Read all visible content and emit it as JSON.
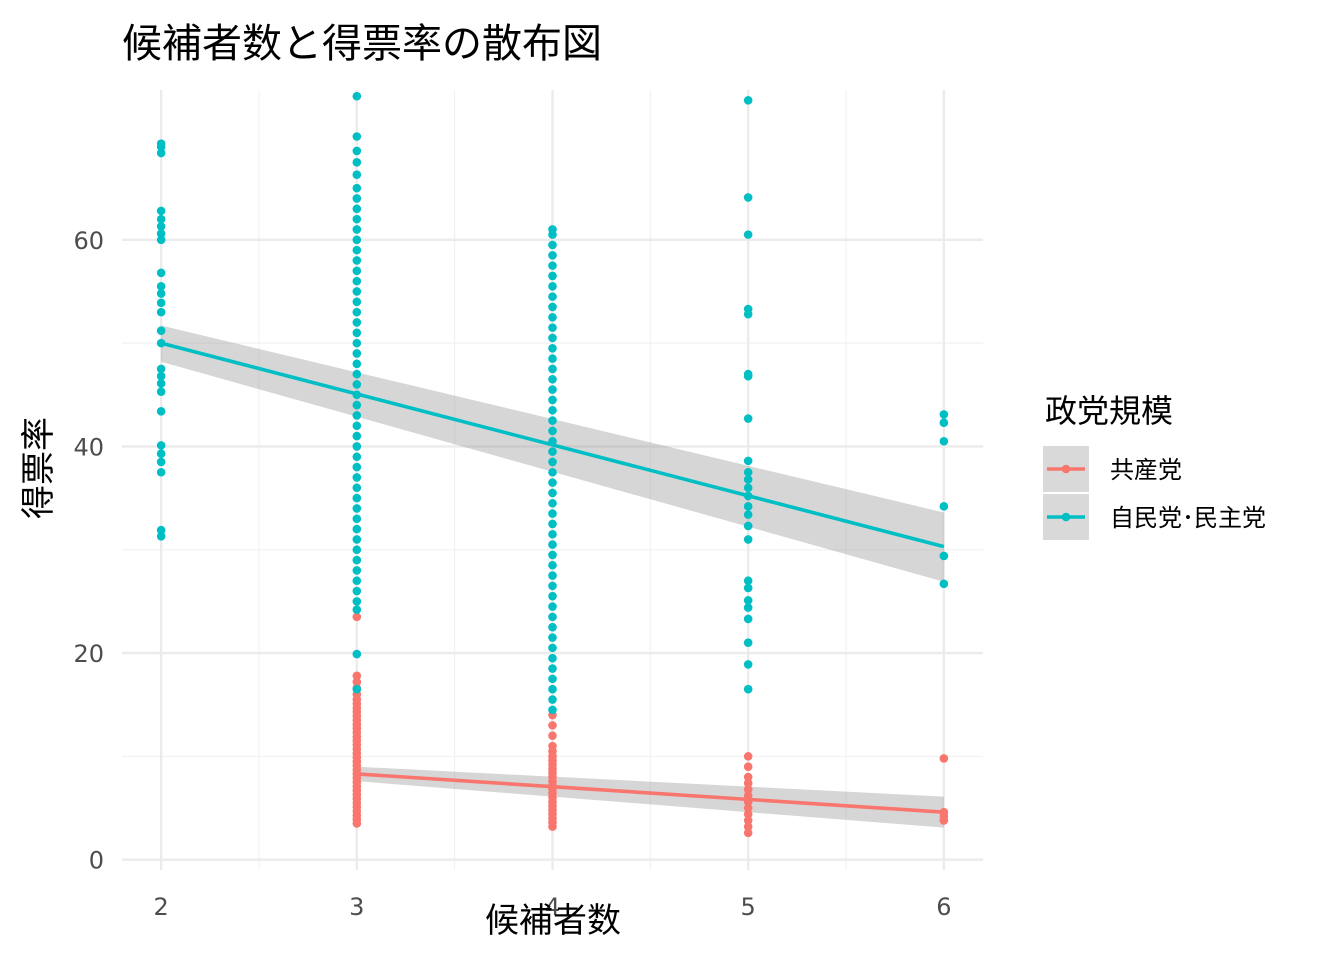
{
  "chart_data": {
    "type": "scatter",
    "title": "候補者数と得票率の散布図",
    "xlabel": "候補者数",
    "ylabel": "得票率",
    "xlim": [
      1.8,
      6.2
    ],
    "ylim": [
      -1,
      74.5
    ],
    "x_ticks": [
      2,
      3,
      4,
      5,
      6
    ],
    "y_ticks": [
      0,
      20,
      40,
      60
    ],
    "grid": true,
    "legend": {
      "title": "政党規模",
      "placement": "right",
      "entries": [
        "共産党",
        "自民党･民主党"
      ]
    },
    "series": [
      {
        "name": "共産党",
        "color": "#f8766d",
        "points": [
          [
            3,
            3.5
          ],
          [
            3,
            3.9
          ],
          [
            3,
            4.3
          ],
          [
            3,
            4.7
          ],
          [
            3,
            5.1
          ],
          [
            3,
            5.5
          ],
          [
            3,
            5.9
          ],
          [
            3,
            6.3
          ],
          [
            3,
            6.7
          ],
          [
            3,
            7.1
          ],
          [
            3,
            7.5
          ],
          [
            3,
            7.9
          ],
          [
            3,
            8.3
          ],
          [
            3,
            8.7
          ],
          [
            3,
            9.1
          ],
          [
            3,
            9.5
          ],
          [
            3,
            9.9
          ],
          [
            3,
            10.3
          ],
          [
            3,
            10.7
          ],
          [
            3,
            11.1
          ],
          [
            3,
            11.5
          ],
          [
            3,
            11.9
          ],
          [
            3,
            12.3
          ],
          [
            3,
            12.7
          ],
          [
            3,
            13.1
          ],
          [
            3,
            13.5
          ],
          [
            3,
            13.9
          ],
          [
            3,
            14.3
          ],
          [
            3,
            14.7
          ],
          [
            3,
            15.1
          ],
          [
            3,
            15.5
          ],
          [
            3,
            16.0
          ],
          [
            3,
            16.6
          ],
          [
            3,
            17.2
          ],
          [
            3,
            17.8
          ],
          [
            3,
            23.5
          ],
          [
            4,
            3.2
          ],
          [
            4,
            3.6
          ],
          [
            4,
            4.0
          ],
          [
            4,
            4.4
          ],
          [
            4,
            4.8
          ],
          [
            4,
            5.2
          ],
          [
            4,
            5.6
          ],
          [
            4,
            6.0
          ],
          [
            4,
            6.4
          ],
          [
            4,
            6.8
          ],
          [
            4,
            7.2
          ],
          [
            4,
            7.6
          ],
          [
            4,
            8.0
          ],
          [
            4,
            8.4
          ],
          [
            4,
            8.8
          ],
          [
            4,
            9.2
          ],
          [
            4,
            9.6
          ],
          [
            4,
            10.0
          ],
          [
            4,
            10.5
          ],
          [
            4,
            11.0
          ],
          [
            4,
            12.0
          ],
          [
            4,
            13.0
          ],
          [
            4,
            14.0
          ],
          [
            5,
            2.6
          ],
          [
            5,
            3.2
          ],
          [
            5,
            3.8
          ],
          [
            5,
            4.4
          ],
          [
            5,
            5.0
          ],
          [
            5,
            5.6
          ],
          [
            5,
            6.2
          ],
          [
            5,
            6.8
          ],
          [
            5,
            7.4
          ],
          [
            5,
            8.0
          ],
          [
            5,
            9.0
          ],
          [
            5,
            10.0
          ],
          [
            6,
            3.8
          ],
          [
            6,
            4.2
          ],
          [
            6,
            4.6
          ],
          [
            6,
            9.8
          ]
        ],
        "trend": {
          "x": [
            3,
            6
          ],
          "y": [
            8.3,
            4.6
          ],
          "ci_lower": [
            7.6,
            3.1
          ],
          "ci_upper": [
            9.0,
            6.1
          ]
        }
      },
      {
        "name": "自民党･民主党",
        "color": "#00bfc4",
        "points": [
          [
            2,
            31.3
          ],
          [
            2,
            31.9
          ],
          [
            2,
            37.5
          ],
          [
            2,
            38.5
          ],
          [
            2,
            39.3
          ],
          [
            2,
            40.1
          ],
          [
            2,
            43.4
          ],
          [
            2,
            45.3
          ],
          [
            2,
            46.1
          ],
          [
            2,
            46.8
          ],
          [
            2,
            47.5
          ],
          [
            2,
            50.0
          ],
          [
            2,
            51.2
          ],
          [
            2,
            53.0
          ],
          [
            2,
            53.9
          ],
          [
            2,
            54.8
          ],
          [
            2,
            55.5
          ],
          [
            2,
            56.8
          ],
          [
            2,
            60.0
          ],
          [
            2,
            60.6
          ],
          [
            2,
            61.3
          ],
          [
            2,
            62.0
          ],
          [
            2,
            62.8
          ],
          [
            2,
            68.4
          ],
          [
            2,
            69.0
          ],
          [
            2,
            69.3
          ],
          [
            3,
            16.5
          ],
          [
            3,
            19.9
          ],
          [
            3,
            24.2
          ],
          [
            3,
            25.0
          ],
          [
            3,
            26.0
          ],
          [
            3,
            27.0
          ],
          [
            3,
            28.0
          ],
          [
            3,
            29.0
          ],
          [
            3,
            30.0
          ],
          [
            3,
            31.0
          ],
          [
            3,
            32.0
          ],
          [
            3,
            33.0
          ],
          [
            3,
            34.0
          ],
          [
            3,
            35.0
          ],
          [
            3,
            36.0
          ],
          [
            3,
            37.0
          ],
          [
            3,
            38.0
          ],
          [
            3,
            39.0
          ],
          [
            3,
            40.0
          ],
          [
            3,
            41.0
          ],
          [
            3,
            42.0
          ],
          [
            3,
            43.0
          ],
          [
            3,
            44.0
          ],
          [
            3,
            45.0
          ],
          [
            3,
            46.0
          ],
          [
            3,
            47.0
          ],
          [
            3,
            48.0
          ],
          [
            3,
            49.0
          ],
          [
            3,
            50.0
          ],
          [
            3,
            51.0
          ],
          [
            3,
            52.0
          ],
          [
            3,
            53.0
          ],
          [
            3,
            54.0
          ],
          [
            3,
            55.0
          ],
          [
            3,
            56.0
          ],
          [
            3,
            57.0
          ],
          [
            3,
            58.0
          ],
          [
            3,
            59.0
          ],
          [
            3,
            60.0
          ],
          [
            3,
            61.0
          ],
          [
            3,
            62.0
          ],
          [
            3,
            63.0
          ],
          [
            3,
            64.0
          ],
          [
            3,
            65.0
          ],
          [
            3,
            66.3
          ],
          [
            3,
            67.5
          ],
          [
            3,
            68.6
          ],
          [
            3,
            70.0
          ],
          [
            3,
            73.9
          ],
          [
            4,
            14.5
          ],
          [
            4,
            15.5
          ],
          [
            4,
            16.5
          ],
          [
            4,
            17.5
          ],
          [
            4,
            18.5
          ],
          [
            4,
            19.5
          ],
          [
            4,
            20.5
          ],
          [
            4,
            21.5
          ],
          [
            4,
            22.5
          ],
          [
            4,
            23.5
          ],
          [
            4,
            24.5
          ],
          [
            4,
            25.5
          ],
          [
            4,
            26.5
          ],
          [
            4,
            27.5
          ],
          [
            4,
            28.5
          ],
          [
            4,
            29.5
          ],
          [
            4,
            30.5
          ],
          [
            4,
            31.5
          ],
          [
            4,
            32.5
          ],
          [
            4,
            33.5
          ],
          [
            4,
            34.5
          ],
          [
            4,
            35.5
          ],
          [
            4,
            36.5
          ],
          [
            4,
            37.5
          ],
          [
            4,
            38.5
          ],
          [
            4,
            39.5
          ],
          [
            4,
            40.5
          ],
          [
            4,
            41.5
          ],
          [
            4,
            42.5
          ],
          [
            4,
            43.5
          ],
          [
            4,
            44.5
          ],
          [
            4,
            45.5
          ],
          [
            4,
            46.5
          ],
          [
            4,
            47.5
          ],
          [
            4,
            48.5
          ],
          [
            4,
            49.5
          ],
          [
            4,
            50.5
          ],
          [
            4,
            51.5
          ],
          [
            4,
            52.5
          ],
          [
            4,
            53.5
          ],
          [
            4,
            54.5
          ],
          [
            4,
            55.5
          ],
          [
            4,
            56.5
          ],
          [
            4,
            57.5
          ],
          [
            4,
            58.5
          ],
          [
            4,
            59.5
          ],
          [
            4,
            60.5
          ],
          [
            4,
            61.0
          ],
          [
            5,
            16.5
          ],
          [
            5,
            18.9
          ],
          [
            5,
            21.0
          ],
          [
            5,
            23.3
          ],
          [
            5,
            24.4
          ],
          [
            5,
            25.1
          ],
          [
            5,
            26.3
          ],
          [
            5,
            27.0
          ],
          [
            5,
            31.0
          ],
          [
            5,
            32.3
          ],
          [
            5,
            33.4
          ],
          [
            5,
            34.2
          ],
          [
            5,
            35.2
          ],
          [
            5,
            36.0
          ],
          [
            5,
            36.8
          ],
          [
            5,
            37.5
          ],
          [
            5,
            38.6
          ],
          [
            5,
            42.7
          ],
          [
            5,
            46.8
          ],
          [
            5,
            47.0
          ],
          [
            5,
            52.8
          ],
          [
            5,
            53.3
          ],
          [
            5,
            60.5
          ],
          [
            5,
            64.1
          ],
          [
            5,
            73.5
          ],
          [
            6,
            26.7
          ],
          [
            6,
            29.4
          ],
          [
            6,
            34.2
          ],
          [
            6,
            40.5
          ],
          [
            6,
            42.3
          ],
          [
            6,
            43.1
          ]
        ],
        "trend": {
          "x": [
            2,
            6
          ],
          "y": [
            50.0,
            30.3
          ],
          "ci_lower": [
            48.2,
            26.9
          ],
          "ci_upper": [
            51.7,
            33.6
          ]
        }
      }
    ]
  }
}
